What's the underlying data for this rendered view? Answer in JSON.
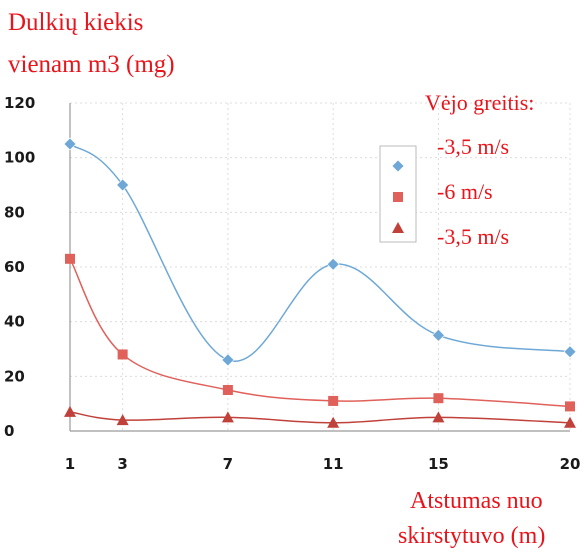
{
  "chart_data": {
    "type": "line",
    "title": "",
    "ylabel_lines": [
      "Dulkių kiekis",
      "vienam m3 (mg)"
    ],
    "xlabel_lines": [
      "Atstumas nuo",
      "skirstytuvo (m)"
    ],
    "x": [
      1,
      3,
      7,
      11,
      15,
      20
    ],
    "xlim": [
      1,
      20
    ],
    "ylim": [
      0,
      120
    ],
    "yticks": [
      0,
      20,
      40,
      60,
      80,
      100,
      120
    ],
    "grid": true,
    "legend": {
      "title": "Vėjo greitis:",
      "placement": "top-right"
    },
    "series": [
      {
        "name": "-3,5 m/s",
        "values": [
          105,
          90,
          26,
          61,
          35,
          29
        ],
        "color": "#6fa8d6",
        "marker": "diamond"
      },
      {
        "name": "-6 m/s",
        "values": [
          63,
          28,
          15,
          11,
          12,
          9
        ],
        "color": "#e0605a",
        "marker": "square"
      },
      {
        "name": "-3,5 m/s",
        "values": [
          7,
          4,
          5,
          3,
          5,
          3
        ],
        "color": "#c0403a",
        "marker": "triangle"
      }
    ]
  }
}
